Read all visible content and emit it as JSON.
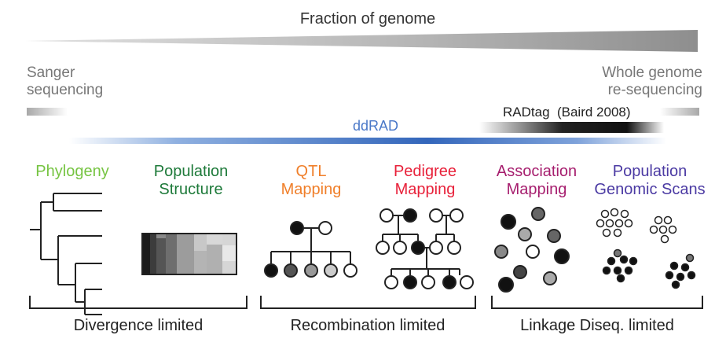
{
  "header": {
    "title": "Fraction of genome"
  },
  "methods": {
    "left": {
      "line1": "Sanger",
      "line2": "sequencing"
    },
    "right": {
      "line1": "Whole genome",
      "line2": "re-sequencing"
    },
    "radtag": "RADtag  (Baird 2008)",
    "ddrad": "ddRAD"
  },
  "applications": [
    {
      "line1": "Phylogeny",
      "line2": "",
      "color": "#76c442"
    },
    {
      "line1": "Population",
      "line2": "Structure",
      "color": "#1e7a3a"
    },
    {
      "line1": "QTL",
      "line2": "Mapping",
      "color": "#f07f2a"
    },
    {
      "line1": "Pedigree",
      "line2": "Mapping",
      "color": "#e8213a"
    },
    {
      "line1": "Association",
      "line2": "Mapping",
      "color": "#a61e6e"
    },
    {
      "line1": "Population",
      "line2": "Genomic Scans",
      "color": "#4b3aa3"
    }
  ],
  "groups": [
    {
      "label": "Divergence limited"
    },
    {
      "label": "Recombination limited"
    },
    {
      "label": "Linkage Diseq. limited"
    }
  ],
  "colors": {
    "ddrad_bar": "#3366bb",
    "ddrad_text": "#4a78c8",
    "method_text": "#777777",
    "ink": "#222222"
  }
}
